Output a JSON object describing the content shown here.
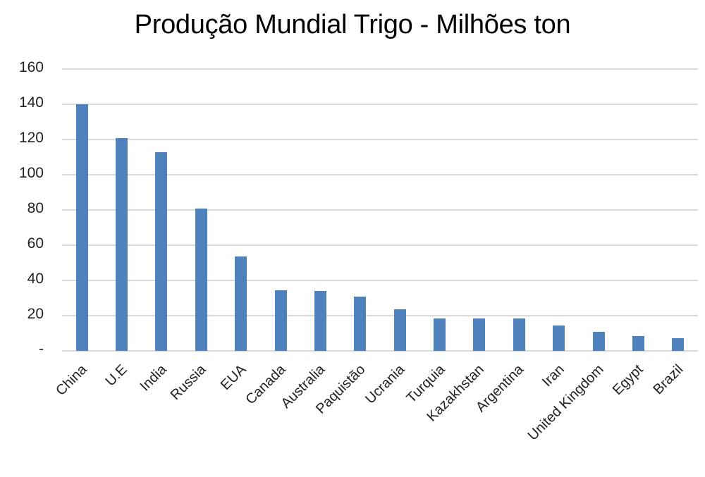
{
  "title": "Produção Mundial Trigo - Milhões ton",
  "colors": {
    "bar": "#4f81bd",
    "grid": "#d9d9d9",
    "text": "#222222"
  },
  "y_ticks": [
    "160",
    "140",
    "120",
    "100",
    "80",
    "60",
    "40",
    "20",
    "-"
  ],
  "chart_data": {
    "type": "bar",
    "title": "Produção Mundial Trigo - Milhões ton",
    "xlabel": "",
    "ylabel": "",
    "ylim": [
      0,
      160
    ],
    "yticks": [
      0,
      20,
      40,
      60,
      80,
      100,
      120,
      140,
      160
    ],
    "ytick_labels": [
      "-",
      "20",
      "40",
      "60",
      "80",
      "100",
      "120",
      "140",
      "160"
    ],
    "grid": true,
    "legend": null,
    "categories": [
      "China",
      "U.E",
      "India",
      "Russia",
      "EUA",
      "Canada",
      "Australia",
      "Paquistão",
      "Ucrania",
      "Turquia",
      "Kazakhstan",
      "Argentina",
      "Iran",
      "United Kingdom",
      "Egypt",
      "Brazil"
    ],
    "values": [
      140,
      121,
      113,
      81,
      53.5,
      34.5,
      34,
      31,
      23.5,
      18.5,
      18.5,
      18.5,
      14.5,
      11,
      8.5,
      7.3
    ]
  }
}
